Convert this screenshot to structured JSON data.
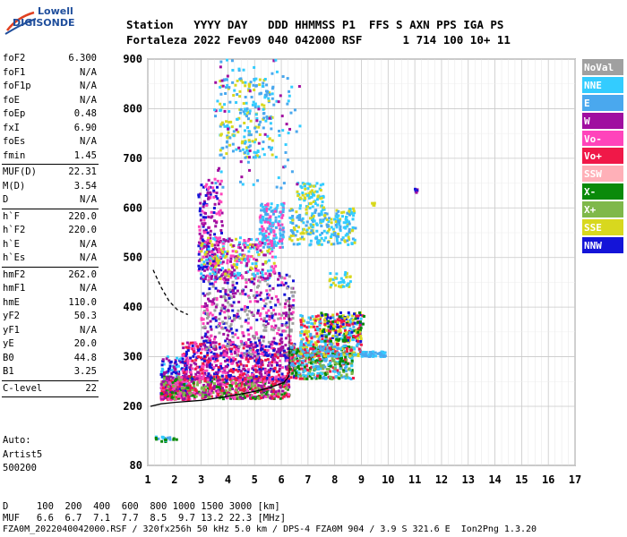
{
  "logo": {
    "line1": "Lowell",
    "line2": "DIGISONDE"
  },
  "header": {
    "row1": "Station   YYYY DAY   DDD HHMMSS P1  FFS S AXN PPS IGA PS",
    "row2": "Fortaleza 2022 Fev09 040 042000 RSF      1 714 100 10+ 11"
  },
  "params": {
    "groups": [
      [
        [
          "foF2",
          "6.300"
        ],
        [
          "foF1",
          "N/A"
        ],
        [
          "foF1p",
          "N/A"
        ],
        [
          "foE",
          "N/A"
        ],
        [
          "foEp",
          "0.48"
        ],
        [
          "fxI",
          "6.90"
        ],
        [
          "foEs",
          "N/A"
        ],
        [
          "fmin",
          "1.45"
        ]
      ],
      [
        [
          "MUF(D)",
          "22.31"
        ],
        [
          "M(D)",
          "3.54"
        ],
        [
          "D",
          "N/A"
        ]
      ],
      [
        [
          "h`F",
          "220.0"
        ],
        [
          "h`F2",
          "220.0"
        ],
        [
          "h`E",
          "N/A"
        ],
        [
          "h`Es",
          "N/A"
        ]
      ],
      [
        [
          "hmF2",
          "262.0"
        ],
        [
          "hmF1",
          "N/A"
        ],
        [
          "hmE",
          "110.0"
        ],
        [
          "yF2",
          "50.3"
        ],
        [
          "yF1",
          "N/A"
        ],
        [
          "yE",
          "20.0"
        ],
        [
          "B0",
          "44.8"
        ],
        [
          "B1",
          "3.25"
        ]
      ],
      [
        [
          "C-level",
          "22"
        ]
      ]
    ],
    "auto_label": "Auto:",
    "artist": "Artist5",
    "artist_version": "500200"
  },
  "legend": [
    {
      "label": "NoVal",
      "color": "#a0a0a0"
    },
    {
      "label": "NNE",
      "color": "#33ccff"
    },
    {
      "label": "E",
      "color": "#4aa8ee"
    },
    {
      "label": "W",
      "color": "#a00ea0"
    },
    {
      "label": "Vo-",
      "color": "#ff44bb"
    },
    {
      "label": "Vo+",
      "color": "#f01848"
    },
    {
      "label": "SSW",
      "color": "#ffb0b8"
    },
    {
      "label": "X-",
      "color": "#0a8a0a"
    },
    {
      "label": "X+",
      "color": "#7fb84a"
    },
    {
      "label": "SSE",
      "color": "#d8d81e"
    },
    {
      "label": "NNW",
      "color": "#1414d8"
    }
  ],
  "footer": {
    "d_row": "D     100  200  400  600  800 1000 1500 3000 [km]",
    "muf_row": "MUF   6.6  6.7  7.1  7.7  8.5  9.7 13.2 22.3 [MHz]",
    "file_row": "FZA0M_2022040042000.RSF / 320fx256h 50 kHz 5.0 km / DPS-4 FZA0M 904 / 3.9 S 321.6 E  Ion2Png 1.3.20"
  },
  "chart_data": {
    "type": "scatter",
    "title": "",
    "xlabel": "",
    "ylabel": "",
    "xlim": [
      1,
      17
    ],
    "ylim": [
      80,
      900
    ],
    "x_ticks": [
      1,
      2,
      3,
      4,
      5,
      6,
      7,
      8,
      9,
      10,
      11,
      12,
      13,
      14,
      15,
      16,
      17
    ],
    "y_ticks": [
      80,
      200,
      300,
      400,
      500,
      600,
      700,
      800,
      900
    ],
    "grid": true,
    "profile_solid": [
      [
        1.1,
        200
      ],
      [
        1.5,
        205
      ],
      [
        2,
        208
      ],
      [
        3,
        212
      ],
      [
        4,
        220
      ],
      [
        5,
        230
      ],
      [
        5.6,
        238
      ],
      [
        6.1,
        248
      ],
      [
        6.3,
        262
      ]
    ],
    "profile_dashed": [
      [
        1.2,
        475
      ],
      [
        1.5,
        440
      ],
      [
        1.8,
        412
      ],
      [
        2.1,
        395
      ],
      [
        2.5,
        385
      ]
    ],
    "clusters": [
      {
        "x": [
          1.5,
          2.6
        ],
        "y": [
          213,
          245
        ],
        "n": 240,
        "colors": [
          3,
          4,
          5
        ]
      },
      {
        "x": [
          1.5,
          2.5
        ],
        "y": [
          225,
          300
        ],
        "n": 120,
        "colors": [
          10,
          3,
          1
        ]
      },
      {
        "x": [
          1.5,
          6.3
        ],
        "y": [
          215,
          260
        ],
        "n": 700,
        "colors": [
          3,
          4,
          5,
          7,
          8
        ]
      },
      {
        "x": [
          2.3,
          6.5
        ],
        "y": [
          250,
          330
        ],
        "n": 600,
        "colors": [
          3,
          4,
          5,
          10
        ]
      },
      {
        "x": [
          3,
          6.5
        ],
        "y": [
          300,
          470
        ],
        "n": 500,
        "colors": [
          3,
          4,
          10,
          0
        ]
      },
      {
        "x": [
          2.9,
          3.8
        ],
        "y": [
          470,
          660
        ],
        "n": 180,
        "colors": [
          3,
          10,
          4
        ]
      },
      {
        "x": [
          6.3,
          8.7
        ],
        "y": [
          255,
          320
        ],
        "n": 420,
        "colors": [
          1,
          2,
          8,
          7,
          5
        ]
      },
      {
        "x": [
          6.7,
          9
        ],
        "y": [
          300,
          385
        ],
        "n": 320,
        "colors": [
          1,
          2,
          9,
          5
        ]
      },
      {
        "x": [
          7.5,
          9.1
        ],
        "y": [
          330,
          390
        ],
        "n": 140,
        "colors": [
          9,
          5,
          10,
          7
        ]
      },
      {
        "x": [
          3,
          5.8
        ],
        "y": [
          455,
          540
        ],
        "n": 320,
        "colors": [
          9,
          1,
          4,
          3
        ]
      },
      {
        "x": [
          5.2,
          6.1
        ],
        "y": [
          520,
          610
        ],
        "n": 160,
        "colors": [
          1,
          2,
          4
        ]
      },
      {
        "x": [
          6.3,
          8.8
        ],
        "y": [
          525,
          600
        ],
        "n": 240,
        "colors": [
          1,
          9,
          2
        ]
      },
      {
        "x": [
          6.6,
          7.6
        ],
        "y": [
          600,
          650
        ],
        "n": 80,
        "colors": [
          1,
          9
        ]
      },
      {
        "x": [
          3.7,
          5.7
        ],
        "y": [
          700,
          860
        ],
        "n": 200,
        "colors": [
          9,
          1,
          2
        ]
      },
      {
        "x": [
          3.5,
          6.8
        ],
        "y": [
          640,
          900
        ],
        "n": 110,
        "colors": [
          1,
          3,
          2
        ]
      },
      {
        "x": [
          9,
          9.9
        ],
        "y": [
          300,
          310
        ],
        "n": 60,
        "colors": [
          1,
          2
        ]
      },
      {
        "x": [
          1.3,
          2.1
        ],
        "y": [
          128,
          138
        ],
        "n": 24,
        "colors": [
          1,
          7,
          2
        ]
      },
      {
        "x": [
          7.8,
          8.6
        ],
        "y": [
          440,
          470
        ],
        "n": 40,
        "colors": [
          9,
          1
        ]
      },
      {
        "x": [
          11,
          11.1
        ],
        "y": [
          630,
          640
        ],
        "n": 6,
        "colors": [
          3,
          10
        ]
      },
      {
        "x": [
          9.4,
          9.5
        ],
        "y": [
          605,
          612
        ],
        "n": 4,
        "colors": [
          9
        ]
      }
    ]
  }
}
